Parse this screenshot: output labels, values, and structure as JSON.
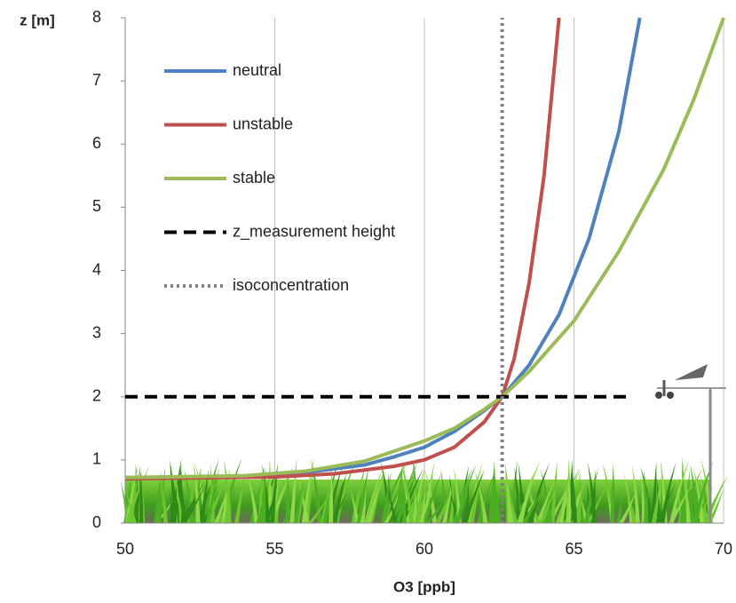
{
  "chart_data": {
    "type": "line",
    "xlabel": "O3  [ppb]",
    "ylabel": "z  [m]",
    "xlim": [
      50,
      70
    ],
    "xticks": [
      50,
      55,
      60,
      65,
      70
    ],
    "ylim": [
      0,
      8
    ],
    "yticks": [
      0,
      1,
      2,
      3,
      4,
      5,
      6,
      7,
      8
    ],
    "grid": "x",
    "legend": "upper left",
    "series": [
      {
        "name": "neutral",
        "color": "#4f81bd",
        "style": "solid",
        "x": [
          50,
          54,
          56,
          58,
          59,
          60,
          61,
          62,
          62.6,
          63.5,
          64.5,
          65.5,
          66.5,
          67.2
        ],
        "values": [
          0.72,
          0.74,
          0.8,
          0.92,
          1.05,
          1.2,
          1.45,
          1.78,
          2.0,
          2.5,
          3.3,
          4.5,
          6.2,
          8
        ]
      },
      {
        "name": "unstable",
        "color": "#c0504d",
        "style": "solid",
        "x": [
          50,
          55,
          57,
          59,
          60,
          61,
          62,
          62.6,
          63,
          63.5,
          64,
          64.3,
          64.5
        ],
        "values": [
          0.7,
          0.73,
          0.78,
          0.9,
          1.0,
          1.2,
          1.6,
          2.0,
          2.6,
          3.8,
          5.5,
          7,
          8
        ]
      },
      {
        "name": "stable",
        "color": "#9bbb59",
        "style": "solid",
        "x": [
          50,
          54,
          56,
          58,
          60,
          61,
          62,
          62.6,
          63.5,
          65,
          66.5,
          68,
          69,
          70
        ],
        "values": [
          0.72,
          0.75,
          0.82,
          0.98,
          1.3,
          1.5,
          1.8,
          2.0,
          2.4,
          3.2,
          4.3,
          5.6,
          6.7,
          8
        ]
      },
      {
        "name": "z_measurement height",
        "color": "#000000",
        "style": "dashed",
        "x": [
          50,
          66.8
        ],
        "values": [
          2,
          2
        ]
      },
      {
        "name": "isoconcentration",
        "color": "#808080",
        "style": "dotted",
        "x": [
          62.6,
          62.6
        ],
        "values": [
          0,
          8
        ]
      }
    ]
  }
}
